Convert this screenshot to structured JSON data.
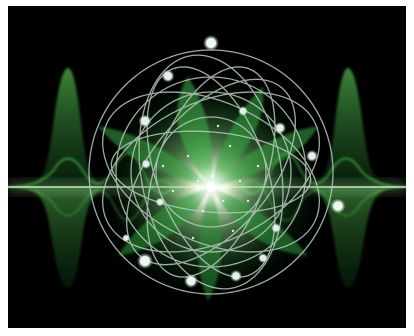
{
  "image": {
    "subject": "glowing-green-quantum-orbit-illustration",
    "colors": {
      "background": "#000000",
      "frame": "#ffffff",
      "glow_core": "#f4ffe0",
      "glow_green": "#7fe07a",
      "wave_green": "#2f9a3a",
      "ring_stroke": "#b9c9bf",
      "node_fill": "#e9f3ee"
    }
  }
}
